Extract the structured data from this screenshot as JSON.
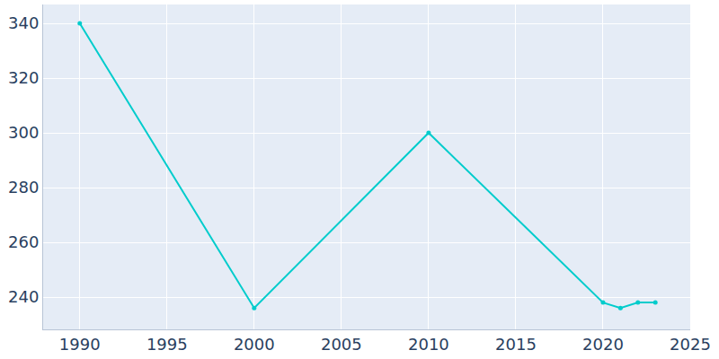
{
  "chart_data": {
    "type": "line",
    "x": [
      1990,
      2000,
      2010,
      2020,
      2021,
      2022,
      2023
    ],
    "values": [
      340,
      236,
      300,
      238,
      236,
      238,
      238
    ],
    "color": "#00cccc",
    "marker": "circle",
    "xlim": [
      1987.9,
      2025
    ],
    "xticks": [
      1990,
      1995,
      2000,
      2005,
      2010,
      2015,
      2020,
      2025
    ],
    "ylim": [
      228.2,
      346.9
    ],
    "yticks": [
      240,
      260,
      280,
      300,
      320,
      340
    ],
    "grid": true
  }
}
